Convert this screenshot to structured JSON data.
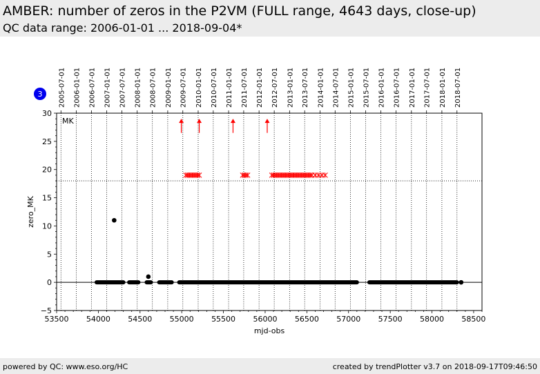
{
  "header": {
    "title": "AMBER: number of zeros in the P2VM (FULL range, 4643 days, close-up)",
    "subtitle": "QC data range: 2006-01-01 ... 2018-09-04*"
  },
  "footer": {
    "left": "powered by QC: www.eso.org/HC",
    "right": "created by trendPlotter v3.7 on 2018-09-17T09:46:50"
  },
  "badge": {
    "value": "3",
    "color": "#0000ee"
  },
  "chart_data": {
    "type": "scatter",
    "xlabel": "mjd-obs",
    "ylabel": "zero_MK",
    "xlim": [
      53500,
      58600
    ],
    "ylim": [
      -5,
      30
    ],
    "x_ticks": [
      53500,
      54000,
      54500,
      55000,
      55500,
      56000,
      56500,
      57000,
      57500,
      58000,
      58500
    ],
    "x_tick_labels": [
      "53500",
      "54000",
      "54500",
      "55000",
      "55500",
      "56000",
      "56500",
      "57000",
      "57500",
      "58000",
      "58500"
    ],
    "y_ticks": [
      -5,
      0,
      5,
      10,
      15,
      20,
      25,
      30
    ],
    "y_tick_labels": [
      "−5",
      "0",
      "5",
      "10",
      "15",
      "20",
      "25",
      "30"
    ],
    "date_axis": {
      "labels": [
        "2005-07-01",
        "2006-01-01",
        "2006-07-01",
        "2007-01-01",
        "2007-07-01",
        "2008-01-01",
        "2008-07-01",
        "2009-01-01",
        "2009-07-01",
        "2010-01-01",
        "2010-07-01",
        "2011-01-01",
        "2011-07-01",
        "2012-01-01",
        "2012-07-01",
        "2013-01-01",
        "2013-07-01",
        "2014-01-01",
        "2014-07-01",
        "2015-01-01",
        "2015-07-01",
        "2016-01-01",
        "2016-07-01",
        "2017-01-01",
        "2017-07-01",
        "2018-01-01",
        "2018-07-01"
      ],
      "mjd": [
        53552,
        53736,
        53917,
        54101,
        54282,
        54466,
        54648,
        54832,
        55013,
        55197,
        55378,
        55562,
        55743,
        55927,
        56109,
        56293,
        56474,
        56658,
        56839,
        57023,
        57204,
        57388,
        57570,
        57754,
        57935,
        58119,
        58300
      ]
    },
    "panel_label": "MK",
    "threshold": 18,
    "series": [
      {
        "marker": "dot",
        "color": "#000000",
        "segments": [
          [
            53980,
            54300
          ],
          [
            54370,
            54480
          ],
          [
            54580,
            54630
          ],
          [
            54730,
            54880
          ],
          [
            54970,
            57100
          ],
          [
            57250,
            58300
          ]
        ],
        "segment_value": 0,
        "points": [
          [
            54190,
            11
          ],
          [
            54600,
            1
          ],
          [
            58350,
            0
          ]
        ]
      },
      {
        "marker": "x",
        "color": "#ff0000",
        "value": 19,
        "x": [
          55050,
          55070,
          55090,
          55110,
          55130,
          55150,
          55170,
          55190,
          55210,
          55730,
          55750,
          55770,
          55790,
          56080,
          56100,
          56120,
          56140,
          56160,
          56180,
          56200,
          56220,
          56240,
          56260,
          56280,
          56300,
          56320,
          56340,
          56360,
          56380,
          56400,
          56420,
          56440,
          56460,
          56480,
          56500,
          56520,
          56540,
          56560,
          56600,
          56640,
          56680,
          56720
        ]
      },
      {
        "marker": "arrow-up",
        "color": "#ff0000",
        "base": 26.5,
        "tip": 29,
        "x": [
          54995,
          55210,
          55615,
          56025
        ]
      }
    ]
  }
}
